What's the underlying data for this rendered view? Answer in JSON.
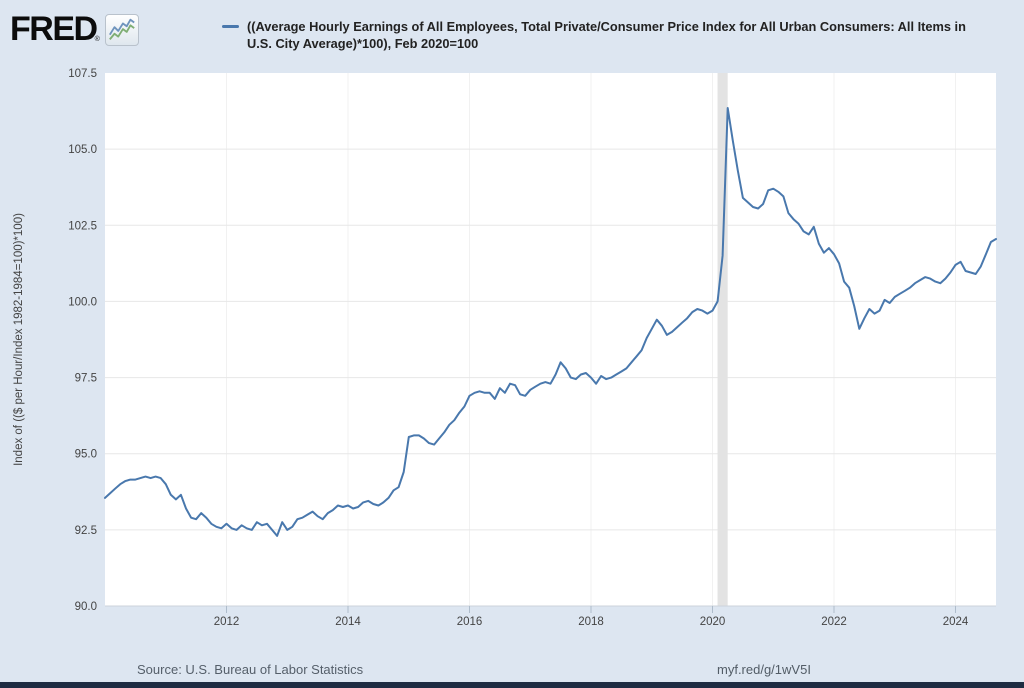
{
  "header": {
    "logo_text": "FRED",
    "logo_reg_mark": "®",
    "legend": {
      "marker_color": "#4978ad",
      "series_label_line1": "((Average Hourly Earnings of All Employees, Total Private/Consumer Price Index for All Urban Consumers: All Items in",
      "series_label_line2": "U.S. City Average)*100), Feb 2020=100"
    }
  },
  "footer": {
    "source_text": "Source: U.S. Bureau of Labor Statistics",
    "shortlink": "myf.red/g/1wV5I"
  },
  "chart_data": {
    "type": "line",
    "title": "((Average Hourly Earnings of All Employees, Total Private/Consumer Price Index for All Urban Consumers: All Items in U.S. City Average)*100), Feb 2020=100",
    "ylabel": "Index of (($ per Hour/Index 1982-1984=100)*100)",
    "xlabel": "",
    "frequency": "monthly",
    "x_start_year": 2010.0,
    "x_end_year": 2024.6667,
    "ylim": [
      90.0,
      107.5
    ],
    "yticks": [
      90.0,
      92.5,
      95.0,
      97.5,
      100.0,
      102.5,
      105.0,
      107.5
    ],
    "xticks": [
      2012,
      2014,
      2016,
      2018,
      2020,
      2022,
      2024
    ],
    "grid": true,
    "legend_position": "top",
    "line_color": "#4978ad",
    "recession_shading": {
      "start_year": 2020.0833,
      "end_year": 2020.25,
      "color": "#e3e3e3"
    },
    "values": [
      93.55,
      93.7,
      93.85,
      94.0,
      94.1,
      94.15,
      94.15,
      94.2,
      94.25,
      94.2,
      94.25,
      94.2,
      94.0,
      93.65,
      93.5,
      93.65,
      93.2,
      92.9,
      92.85,
      93.05,
      92.9,
      92.7,
      92.6,
      92.55,
      92.7,
      92.55,
      92.5,
      92.65,
      92.55,
      92.5,
      92.75,
      92.65,
      92.7,
      92.5,
      92.3,
      92.75,
      92.5,
      92.6,
      92.85,
      92.9,
      93.0,
      93.1,
      92.95,
      92.85,
      93.05,
      93.15,
      93.3,
      93.25,
      93.3,
      93.2,
      93.25,
      93.4,
      93.45,
      93.35,
      93.3,
      93.4,
      93.55,
      93.8,
      93.9,
      94.4,
      95.55,
      95.6,
      95.6,
      95.5,
      95.35,
      95.3,
      95.5,
      95.7,
      95.95,
      96.1,
      96.35,
      96.55,
      96.9,
      97.0,
      97.05,
      97.0,
      97.0,
      96.8,
      97.15,
      97.0,
      97.3,
      97.25,
      96.95,
      96.9,
      97.1,
      97.2,
      97.3,
      97.35,
      97.3,
      97.6,
      98.0,
      97.8,
      97.5,
      97.45,
      97.6,
      97.65,
      97.5,
      97.3,
      97.55,
      97.45,
      97.5,
      97.6,
      97.7,
      97.8,
      98.0,
      98.2,
      98.4,
      98.8,
      99.1,
      99.4,
      99.2,
      98.9,
      99.0,
      99.15,
      99.3,
      99.45,
      99.65,
      99.75,
      99.7,
      99.6,
      99.7,
      100.0,
      101.5,
      106.35,
      105.3,
      104.3,
      103.4,
      103.25,
      103.1,
      103.05,
      103.2,
      103.65,
      103.7,
      103.6,
      103.45,
      102.9,
      102.7,
      102.55,
      102.3,
      102.2,
      102.45,
      101.9,
      101.6,
      101.75,
      101.55,
      101.25,
      100.65,
      100.45,
      99.85,
      99.1,
      99.45,
      99.75,
      99.6,
      99.7,
      100.05,
      99.95,
      100.15,
      100.25,
      100.35,
      100.45,
      100.6,
      100.7,
      100.8,
      100.75,
      100.65,
      100.6,
      100.75,
      100.95,
      101.2,
      101.3,
      101.0,
      100.95,
      100.9,
      101.15,
      101.55,
      101.95,
      102.05
    ]
  }
}
